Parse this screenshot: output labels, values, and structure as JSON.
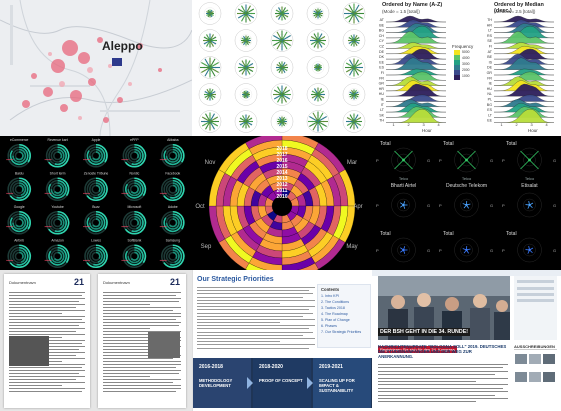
{
  "tile_map": {
    "city_label": "Aleppo"
  },
  "tile_ridgeline": {
    "left_title": "Ordered by Name (A-Z)",
    "left_subtitle": "(Mode = 1.5 [total])",
    "right_title": "Ordered by Median (desc.)",
    "right_subtitle": "(Median = 2.5 [total])",
    "left_rows": [
      "AT",
      "BE",
      "BG",
      "CH",
      "CY",
      "CZ",
      "DE",
      "DK",
      "EE",
      "ES",
      "FI",
      "FR",
      "GR",
      "HR",
      "HU",
      "IE",
      "IT",
      "LT",
      "SK",
      "TH"
    ],
    "right_rows": [
      "TH",
      "HR",
      "LT",
      "RS",
      "SE",
      "FI",
      "AT",
      "BE",
      "IS",
      "DE",
      "GR",
      "FR",
      "IE",
      "HU",
      "NL",
      "PL",
      "BG",
      "ES",
      "LT",
      "EE"
    ],
    "xticks": [
      "1",
      "2",
      "3",
      "4"
    ],
    "xlabel": "Hour",
    "legend_title": "Frequency",
    "legend_ticks": [
      "5000",
      "4000",
      "3000",
      "2000",
      "1000"
    ]
  },
  "tile_radial_grid": {
    "titles": [
      "eCommerce",
      "Revenue kart",
      "Apple",
      "ePFP",
      "Alibaba",
      "Baidu",
      "Short term",
      "Zenoste Tribune",
      "Nordic",
      "Facebook",
      "Google",
      "Youtube",
      "Buzz",
      "Microsoft",
      "Adobe",
      "Airbnb",
      "Amazon",
      "Lowes",
      "SoftBank",
      "Samsung"
    ]
  },
  "tile_spiral": {
    "years": [
      "2018",
      "2017",
      "2016",
      "2015",
      "2014",
      "2013",
      "2012",
      "2011",
      "2010"
    ],
    "months": [
      "Nov",
      "Mar",
      "Oct",
      "Apr",
      "Sep",
      "May"
    ]
  },
  "tile_vector_grid": {
    "row1": [
      "Total",
      "Total",
      "Total"
    ],
    "row2": [
      "Bharti Airtel",
      "Deutsche Telekom",
      "Etisalat"
    ],
    "row2_small": [
      "Telco",
      "Telco",
      "Telco"
    ],
    "row3": [
      "Total",
      "Total",
      "Total"
    ],
    "axis_letters": [
      "P",
      "G"
    ]
  },
  "tile_docs": {
    "doc_heading": "Dokumentnavn",
    "doc_number": "21"
  },
  "tile_strategy": {
    "title": "Our Strategic Priorities",
    "toc": [
      "Contents",
      "1. Intro KPI",
      "2. The Conditions",
      "3. Tactics 2018",
      "4. The Roadmap",
      "5. Plan of Change",
      "6. Phases",
      "7. Our Strategic Priorities"
    ],
    "phases": [
      {
        "years": "2016-2018",
        "name": "METHODOLOGY DEVELOPMENT"
      },
      {
        "years": "2018-2020",
        "name": "PROOF OF CONCEPT"
      },
      {
        "years": "2019-2021",
        "name": "SCALING UP FOR IMPACT & SUSTAINABILITY"
      }
    ]
  },
  "tile_news": {
    "banner_line1": "DER BSH GEHT IN DIE 34. RUNDE!",
    "banner_line2": "Registrieren Sie sich für den 34. Kongress",
    "headline": "NACHRICHTENUPDATE \"BOLOGNA SOLL\" 2019. DEUTSCHES DIE STUDIENANFÄNGER UND DER WEG ZUR ANERKANNUNG.",
    "sidebar_label": "AUSSCHREIBUNGEN"
  }
}
